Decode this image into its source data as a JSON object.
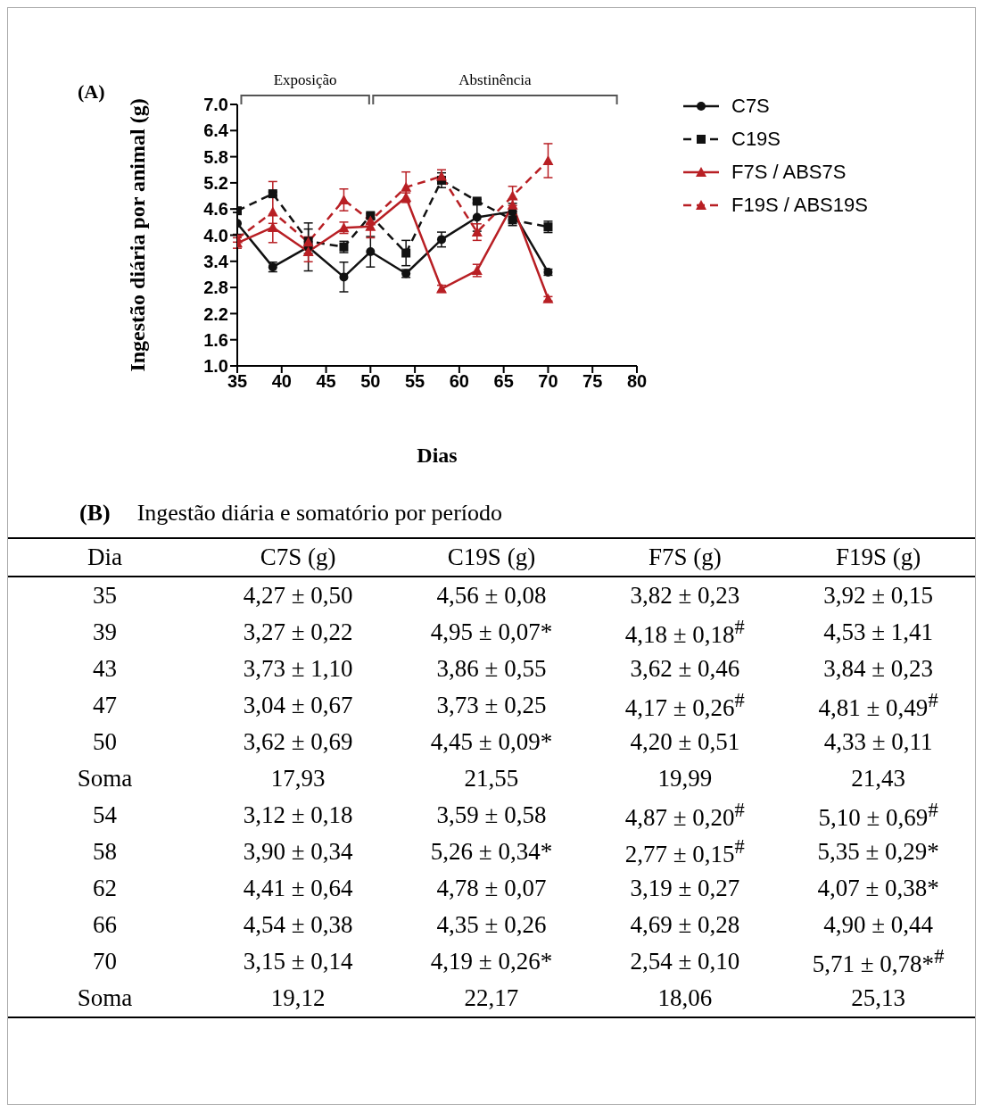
{
  "chart_data": [
    {
      "type": "line",
      "annotations": [
        "(A)",
        "Exposição",
        "Abstinência"
      ],
      "ylabel": "Ingestão diária por animal (g)",
      "xlabel": "Dias",
      "x": [
        35,
        39,
        43,
        47,
        50,
        54,
        58,
        62,
        66,
        70
      ],
      "xlim": [
        35,
        80
      ],
      "xticks": [
        35,
        40,
        45,
        50,
        55,
        60,
        65,
        70,
        75,
        80
      ],
      "ylim": [
        1.0,
        7.0
      ],
      "yticks": [
        {
          "value": 1.0,
          "label": "1.0"
        },
        {
          "value": 1.6,
          "label": "1.6"
        },
        {
          "value": 2.2,
          "label": "2.2"
        },
        {
          "value": 2.8,
          "label": "2.8"
        },
        {
          "value": 3.4,
          "label": "3.4"
        },
        {
          "value": 4.0,
          "label": "4.0"
        },
        {
          "value": 4.6,
          "label": "4.6"
        },
        {
          "value": 5.2,
          "label": "5.2"
        },
        {
          "value": 5.8,
          "label": "5.8"
        },
        {
          "value": 6.4,
          "label": "6.4"
        },
        {
          "value": 7.0,
          "label": "7.0"
        }
      ],
      "legend": "right",
      "series": [
        {
          "name": "C7S",
          "color": "#111111",
          "marker": "circle",
          "line_style": "solid",
          "values": [
            4.27,
            3.27,
            3.73,
            3.04,
            3.62,
            3.12,
            3.9,
            4.41,
            4.54,
            3.15
          ],
          "errors": [
            0.25,
            0.11,
            0.55,
            0.34,
            0.35,
            0.09,
            0.17,
            0.32,
            0.19,
            0.07
          ]
        },
        {
          "name": "C19S",
          "color": "#111111",
          "marker": "square",
          "line_style": "dashed",
          "values": [
            4.56,
            4.95,
            3.86,
            3.73,
            4.45,
            3.59,
            5.26,
            4.78,
            4.35,
            4.19
          ],
          "errors": [
            0.04,
            0.04,
            0.28,
            0.13,
            0.05,
            0.29,
            0.17,
            0.04,
            0.13,
            0.13
          ]
        },
        {
          "name": "F7S / ABS7S",
          "color": "#b81f24",
          "marker": "triangle",
          "line_style": "solid",
          "values": [
            3.82,
            4.18,
            3.62,
            4.17,
            4.2,
            4.87,
            2.77,
            3.19,
            4.69,
            2.54
          ],
          "errors": [
            0.12,
            0.09,
            0.23,
            0.13,
            0.26,
            0.1,
            0.08,
            0.14,
            0.14,
            0.05
          ]
        },
        {
          "name": "F19S / ABS19S",
          "color": "#b81f24",
          "marker": "triangle",
          "line_style": "dashed",
          "values": [
            3.92,
            4.53,
            3.84,
            4.81,
            4.33,
            5.1,
            5.35,
            4.07,
            4.9,
            5.71
          ],
          "errors": [
            0.08,
            0.7,
            0.12,
            0.25,
            0.06,
            0.35,
            0.15,
            0.19,
            0.22,
            0.39
          ]
        }
      ]
    },
    {
      "type": "other",
      "annotations": [
        "(B)"
      ],
      "title": "Ingestão diária e somatório por período",
      "ylabel": "Dia",
      "categories": [
        "35",
        "39",
        "43",
        "47",
        "50",
        "Soma",
        "54",
        "58",
        "62",
        "66",
        "70",
        "Soma"
      ],
      "series": [
        {
          "name": "C7S (g)",
          "values": [
            4.27,
            3.27,
            3.73,
            3.04,
            3.62,
            17.93,
            3.12,
            3.9,
            4.41,
            4.54,
            3.15,
            19.12
          ],
          "value_labels": [
            "4,27 ± 0,50",
            "3,27 ± 0,22",
            "3,73 ± 1,10",
            "3,04 ± 0,67",
            "3,62 ± 0,69",
            "17,93",
            "3,12 ± 0,18",
            "3,90 ± 0,34",
            "4,41 ± 0,64",
            "4,54 ± 0,38",
            "3,15 ± 0,14",
            "19,12"
          ]
        },
        {
          "name": "C19S (g)",
          "values": [
            4.56,
            4.95,
            3.86,
            3.73,
            4.45,
            21.55,
            3.59,
            5.26,
            4.78,
            4.35,
            4.19,
            22.17
          ],
          "value_labels": [
            "4,56 ± 0,08",
            "4,95 ± 0,07*",
            "3,86 ± 0,55",
            "3,73 ± 0,25",
            "4,45 ± 0,09*",
            "21,55",
            "3,59 ± 0,58",
            "5,26 ± 0,34*",
            "4,78 ± 0,07",
            "4,35 ± 0,26",
            "4,19 ± 0,26*",
            "22,17"
          ]
        },
        {
          "name": "F7S (g)",
          "values": [
            3.82,
            4.18,
            3.62,
            4.17,
            4.2,
            19.99,
            4.87,
            2.77,
            3.19,
            4.69,
            2.54,
            18.06
          ],
          "value_labels": [
            "3,82 ± 0,23",
            "4,18 ± 0,18$^{#}$",
            "3,62 ± 0,46",
            "4,17 ± 0,26$^{#}$",
            "4,20 ± 0,51",
            "19,99",
            "4,87 ± 0,20$^{#}$",
            "2,77 ± 0,15$^{#}$",
            "3,19 ± 0,27",
            "4,69 ± 0,28",
            "2,54 ± 0,10",
            "18,06"
          ]
        },
        {
          "name": "F19S (g)",
          "values": [
            3.92,
            4.53,
            3.84,
            4.81,
            4.33,
            21.43,
            5.1,
            5.35,
            4.07,
            4.9,
            5.71,
            25.13
          ],
          "value_labels": [
            "3,92 ± 0,15",
            "4,53 ± 1,41",
            "3,84 ± 0,23",
            "4,81 ± 0,49$^{#}$",
            "4,33 ± 0,11",
            "21,43",
            "5,10 ± 0,69$^{#}$",
            "5,35 ± 0,29*",
            "4,07 ± 0,38*",
            "4,90 ± 0,44",
            "5,71 ± 0,78*$^{#}$",
            "25,13"
          ]
        }
      ]
    }
  ]
}
